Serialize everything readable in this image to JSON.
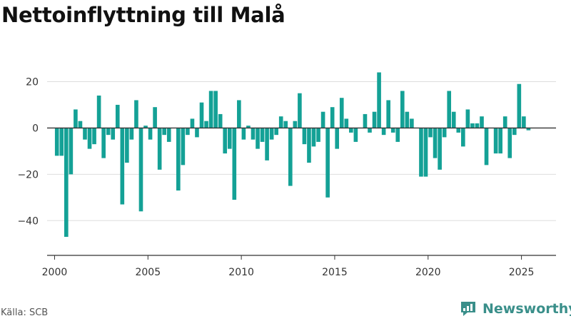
{
  "title": "Nettoinflyttning till Malå",
  "source": "Källa: SCB",
  "logo": {
    "text": "Newsworthy",
    "icon": "newsworthy-logo-icon"
  },
  "colors": {
    "bar": "#14a196",
    "grid": "#dddddd",
    "zero": "#333333",
    "axis": "#333333",
    "text": "#333333",
    "logo": "#3a8f8a"
  },
  "chart_data": {
    "type": "bar",
    "title": "Nettoinflyttning till Malå",
    "xlabel": "",
    "ylabel": "",
    "ylim": [
      -55,
      30
    ],
    "xlim": [
      1999.6,
      2026.85
    ],
    "grid": true,
    "legend": "none",
    "yticks": [
      20,
      0,
      -20,
      -40
    ],
    "ytick_labels": [
      "20",
      "0",
      "−20",
      "−40"
    ],
    "xticks": [
      2000,
      2005,
      2010,
      2015,
      2020,
      2025
    ],
    "xtick_labels": [
      "2000",
      "2005",
      "2010",
      "2015",
      "2020",
      "2025"
    ],
    "series": [
      {
        "period": "quarter",
        "start": "2000Q1",
        "values": [
          -12,
          -12,
          -47,
          -20,
          8,
          3,
          -5,
          -9,
          -7,
          14,
          -13,
          -3,
          -5,
          10,
          -33,
          -15,
          -5,
          12,
          -36,
          1,
          -5,
          9,
          -18,
          -3,
          -6,
          0,
          -27,
          -16,
          -3,
          4,
          -4,
          11,
          3,
          16,
          16,
          6,
          -11,
          -9,
          -31,
          12,
          -5,
          1,
          -5,
          -9,
          -6,
          -14,
          -5,
          -3,
          5,
          3,
          -25,
          3,
          15,
          -7,
          -15,
          -8,
          -6,
          7,
          -30,
          9,
          -9,
          13,
          4,
          -2,
          -6,
          0,
          6,
          -2,
          7,
          24,
          -3,
          12,
          -2,
          -6,
          16,
          7,
          4,
          0,
          -21,
          -21,
          -4,
          -13,
          -18,
          -4,
          16,
          7,
          -2,
          -8,
          8,
          2,
          2,
          5,
          -16,
          0,
          -11,
          -11,
          5,
          -13,
          -3,
          19,
          5,
          -1
        ]
      }
    ]
  }
}
